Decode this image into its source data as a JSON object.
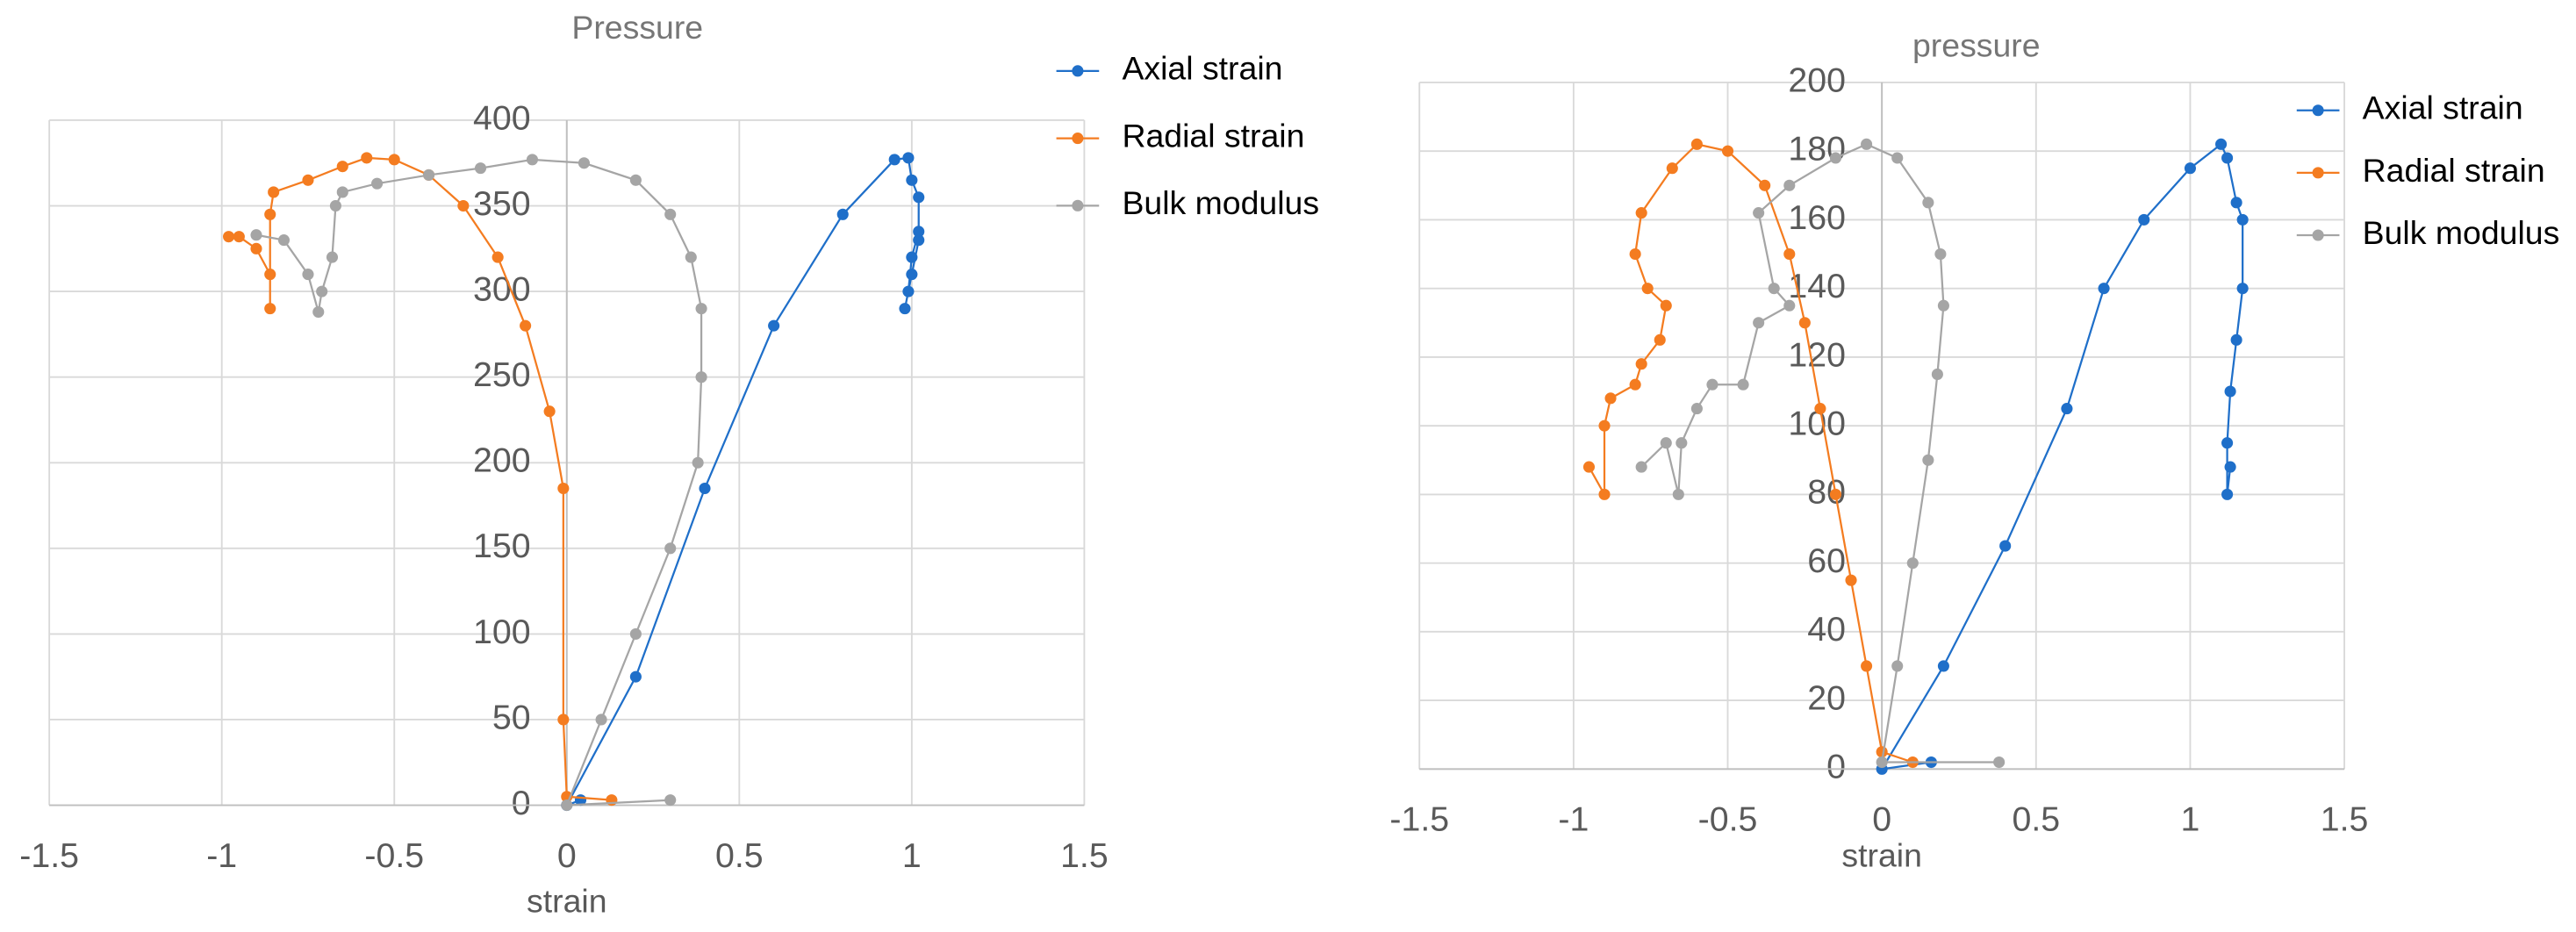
{
  "chart_data": [
    {
      "type": "scatter",
      "title": "Pressure",
      "x_label": "strain",
      "xlim": [
        -1.5,
        1.5
      ],
      "ylim": [
        0,
        400
      ],
      "xticks": [
        -1.5,
        -1,
        -0.5,
        0,
        0.5,
        1,
        1.5
      ],
      "yticks": [
        0,
        50,
        100,
        150,
        200,
        250,
        300,
        350,
        400
      ],
      "grid": true,
      "series": [
        {
          "name": "Axial strain",
          "color": "#1f6fc9",
          "x": [
            0.04,
            0,
            0.2,
            0.4,
            0.6,
            0.8,
            0.95,
            0.99,
            1.0,
            1.02,
            1.02,
            1.0,
            0.98,
            0.99,
            1.0,
            1.02
          ],
          "values": [
            3,
            0,
            75,
            185,
            280,
            345,
            377,
            378,
            365,
            355,
            330,
            310,
            290,
            300,
            320,
            335
          ]
        },
        {
          "name": "Radial strain",
          "color": "#f47c20",
          "x": [
            0.13,
            0,
            -0.01,
            -0.01,
            -0.05,
            -0.12,
            -0.2,
            -0.3,
            -0.4,
            -0.5,
            -0.58,
            -0.65,
            -0.75,
            -0.85,
            -0.86,
            -0.86,
            -0.86,
            -0.9,
            -0.95,
            -0.98
          ],
          "values": [
            3,
            5,
            50,
            185,
            230,
            280,
            320,
            350,
            368,
            377,
            378,
            373,
            365,
            358,
            345,
            290,
            310,
            325,
            332,
            332
          ]
        },
        {
          "name": "Bulk modulus",
          "color": "#a5a5a5",
          "x": [
            0.3,
            0,
            0.1,
            0.2,
            0.3,
            0.38,
            0.39,
            0.39,
            0.36,
            0.3,
            0.2,
            0.05,
            -0.1,
            -0.25,
            -0.4,
            -0.55,
            -0.65,
            -0.67,
            -0.68,
            -0.71,
            -0.72,
            -0.75,
            -0.82,
            -0.9
          ],
          "values": [
            3,
            0,
            50,
            100,
            150,
            200,
            250,
            290,
            320,
            345,
            365,
            375,
            377,
            372,
            368,
            363,
            358,
            350,
            320,
            300,
            288,
            310,
            330,
            333
          ]
        }
      ]
    },
    {
      "type": "scatter",
      "title": "pressure",
      "x_label": "strain",
      "xlim": [
        -1.5,
        1.5
      ],
      "ylim": [
        0,
        200
      ],
      "xticks": [
        -1.5,
        -1,
        -0.5,
        0,
        0.5,
        1,
        1.5
      ],
      "yticks": [
        0,
        20,
        40,
        60,
        80,
        100,
        120,
        140,
        160,
        180,
        200
      ],
      "grid": true,
      "series": [
        {
          "name": "Axial strain",
          "color": "#1f6fc9",
          "x": [
            0.16,
            0,
            0.2,
            0.4,
            0.6,
            0.72,
            0.85,
            1.0,
            1.1,
            1.12,
            1.15,
            1.17,
            1.17,
            1.15,
            1.13,
            1.12,
            1.12,
            1.13
          ],
          "values": [
            2,
            0,
            30,
            65,
            105,
            140,
            160,
            175,
            182,
            178,
            165,
            160,
            140,
            125,
            110,
            95,
            80,
            88
          ]
        },
        {
          "name": "Radial strain",
          "color": "#f47c20",
          "x": [
            0.1,
            0,
            -0.05,
            -0.1,
            -0.15,
            -0.2,
            -0.25,
            -0.3,
            -0.38,
            -0.5,
            -0.6,
            -0.68,
            -0.78,
            -0.8,
            -0.76,
            -0.7,
            -0.72,
            -0.78,
            -0.8,
            -0.88,
            -0.9,
            -0.9,
            -0.95
          ],
          "values": [
            2,
            5,
            30,
            55,
            80,
            105,
            130,
            150,
            170,
            180,
            182,
            175,
            162,
            150,
            140,
            135,
            125,
            118,
            112,
            108,
            100,
            80,
            88
          ]
        },
        {
          "name": "Bulk modulus",
          "color": "#a5a5a5",
          "x": [
            0.38,
            0,
            0.05,
            0.1,
            0.15,
            0.18,
            0.2,
            0.19,
            0.15,
            0.05,
            -0.05,
            -0.15,
            -0.3,
            -0.4,
            -0.35,
            -0.3,
            -0.4,
            -0.45,
            -0.55,
            -0.6,
            -0.65,
            -0.66,
            -0.7,
            -0.78
          ],
          "values": [
            2,
            2,
            30,
            60,
            90,
            115,
            135,
            150,
            165,
            178,
            182,
            178,
            170,
            162,
            140,
            135,
            130,
            112,
            112,
            105,
            95,
            80,
            95,
            88
          ]
        }
      ]
    }
  ]
}
